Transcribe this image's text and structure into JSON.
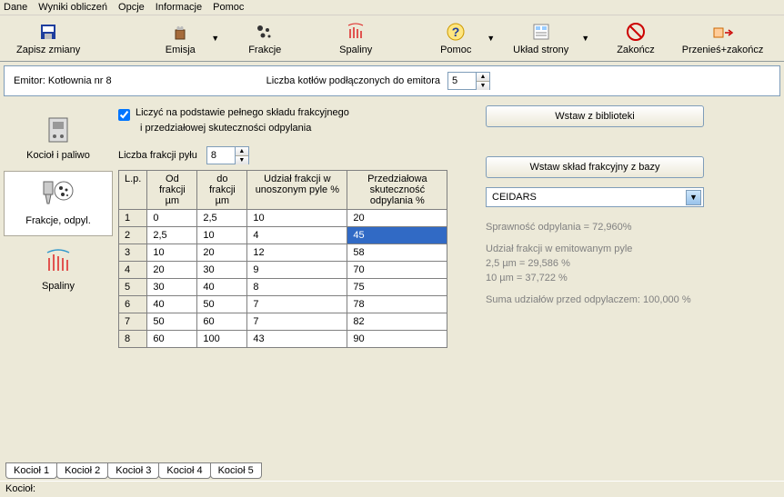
{
  "menu": {
    "dane": "Dane",
    "wyniki": "Wyniki obliczeń",
    "opcje": "Opcje",
    "informacje": "Informacje",
    "pomoc": "Pomoc"
  },
  "toolbar": {
    "zapisz": "Zapisz zmiany",
    "emisja": "Emisja",
    "frakcje": "Frakcje",
    "spaliny": "Spaliny",
    "pomoc": "Pomoc",
    "uklad": "Układ strony",
    "zakoncz": "Zakończ",
    "przenies": "Przenieś+zakończ"
  },
  "header": {
    "emitor_label": "Emitor:",
    "emitor_value": "Kotłownia nr 8",
    "kotly_label": "Liczba kotłów podłączonych do emitora",
    "kotly_value": "5"
  },
  "sidebar": {
    "kociol": "Kocioł i  paliwo",
    "frakcje": "Frakcje, odpyl.",
    "spaliny": "Spaliny"
  },
  "main": {
    "checkbox_label": "Liczyć na podstawie pełnego składu frakcyjnego",
    "checkbox_sub": "i  przedziałowej skuteczności odpylania",
    "frak_count_label": "Liczba frakcji pyłu",
    "frak_count_value": "8",
    "btn_biblioteka": "Wstaw z biblioteki",
    "btn_baza": "Wstaw skład frakcyjny z bazy",
    "combo_value": "CEIDARS",
    "info_sprawnosc": "Sprawność odpylania =  72,960%",
    "info_udzial_header": "Udział frakcji w emitowanym pyle",
    "info_25": "2,5 µm  = 29,586 %",
    "info_10": "10 µm = 37,722 %",
    "info_suma": "Suma udziałów przed odpylaczem: 100,000 %"
  },
  "table": {
    "headers": {
      "lp": "L.p.",
      "od": "Od frakcji µm",
      "do": "do frakcji µm",
      "udzial": "Udział frakcji w unoszonym pyle %",
      "skut": "Przedziałowa skuteczność odpylania %"
    },
    "rows": [
      {
        "lp": "1",
        "od": "0",
        "do": "2,5",
        "udzial": "10",
        "skut": "20"
      },
      {
        "lp": "2",
        "od": "2,5",
        "do": "10",
        "udzial": "4",
        "skut": "45"
      },
      {
        "lp": "3",
        "od": "10",
        "do": "20",
        "udzial": "12",
        "skut": "58"
      },
      {
        "lp": "4",
        "od": "20",
        "do": "30",
        "udzial": "9",
        "skut": "70"
      },
      {
        "lp": "5",
        "od": "30",
        "do": "40",
        "udzial": "8",
        "skut": "75"
      },
      {
        "lp": "6",
        "od": "40",
        "do": "50",
        "udzial": "7",
        "skut": "78"
      },
      {
        "lp": "7",
        "od": "50",
        "do": "60",
        "udzial": "7",
        "skut": "82"
      },
      {
        "lp": "8",
        "od": "60",
        "do": "100",
        "udzial": "43",
        "skut": "90"
      }
    ],
    "selected_cell": {
      "row": 1,
      "col": "skut"
    },
    "col_widths": {
      "lp": 22,
      "od": 55,
      "do": 55,
      "udzial": 110,
      "skut": 110
    }
  },
  "tabs": [
    "Kocioł 1",
    "Kocioł 2",
    "Kocioł 3",
    "Kocioł 4",
    "Kocioł 5"
  ],
  "status": "Kocioł:",
  "colors": {
    "bg": "#ece9d8",
    "border": "#7f9db9",
    "selected_bg": "#316ac5",
    "info_text": "#808080"
  }
}
